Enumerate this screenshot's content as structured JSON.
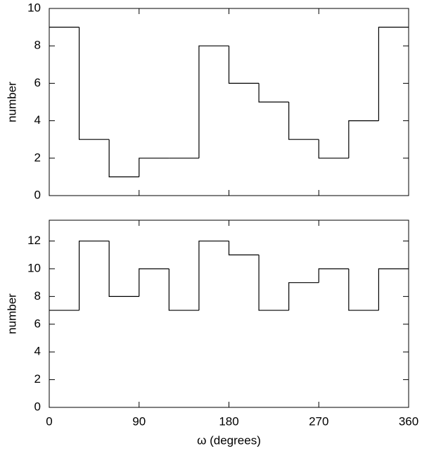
{
  "chart_data": [
    {
      "type": "histogram",
      "ylabel": "number",
      "bins": [
        0,
        30,
        60,
        90,
        120,
        150,
        180,
        210,
        240,
        270,
        300,
        330,
        360
      ],
      "values": [
        9,
        3,
        1,
        2,
        2,
        8,
        6,
        5,
        3,
        2,
        4,
        9
      ],
      "color": "#000000",
      "xlim": [
        0,
        360
      ],
      "ylim": [
        0,
        10
      ],
      "yticks": [
        0,
        2,
        4,
        6,
        8,
        10
      ]
    },
    {
      "type": "histogram",
      "ylabel": "number",
      "xlabel": "ω (degrees)",
      "bins": [
        0,
        30,
        60,
        90,
        120,
        150,
        180,
        210,
        240,
        270,
        300,
        330,
        360
      ],
      "values": [
        7,
        12,
        8,
        10,
        7,
        12,
        11,
        7,
        9,
        10,
        7,
        10
      ],
      "color": "#000000",
      "xlim": [
        0,
        360
      ],
      "ylim": [
        0,
        13.5
      ],
      "xticks": [
        0,
        90,
        180,
        270,
        360
      ],
      "yticks": [
        0,
        2,
        4,
        6,
        8,
        10,
        12
      ]
    }
  ]
}
